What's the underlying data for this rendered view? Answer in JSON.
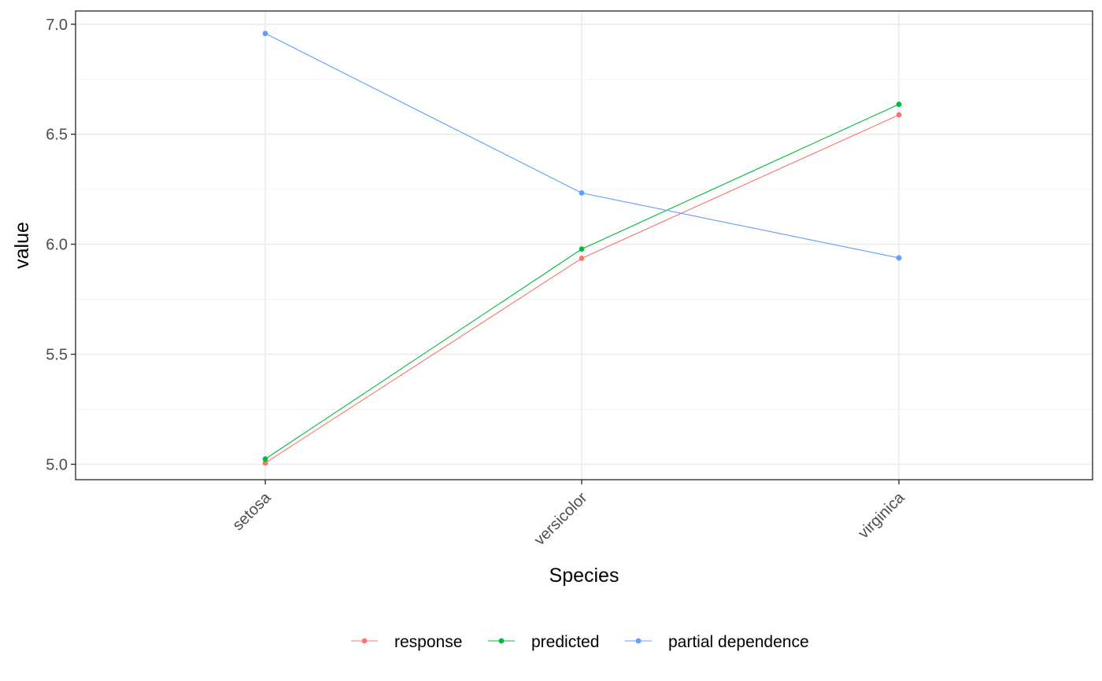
{
  "chart_data": {
    "type": "line",
    "xlabel": "Species",
    "ylabel": "value",
    "categories": [
      "setosa",
      "versicolor",
      "virginica"
    ],
    "ylim": [
      4.93,
      7.06
    ],
    "yticks": [
      5.0,
      5.5,
      6.0,
      6.5,
      7.0
    ],
    "ytick_labels": [
      "5.0",
      "5.5",
      "6.0",
      "6.5",
      "7.0"
    ],
    "grid": true,
    "legend_position": "bottom",
    "series": [
      {
        "name": "response",
        "color": "#f8766d",
        "values": [
          5.006,
          5.936,
          6.588
        ]
      },
      {
        "name": "predicted",
        "color": "#00ba38",
        "values": [
          5.024,
          5.978,
          6.636
        ]
      },
      {
        "name": "partial dependence",
        "color": "#619cff",
        "values": [
          6.958,
          6.233,
          5.938
        ]
      }
    ]
  }
}
